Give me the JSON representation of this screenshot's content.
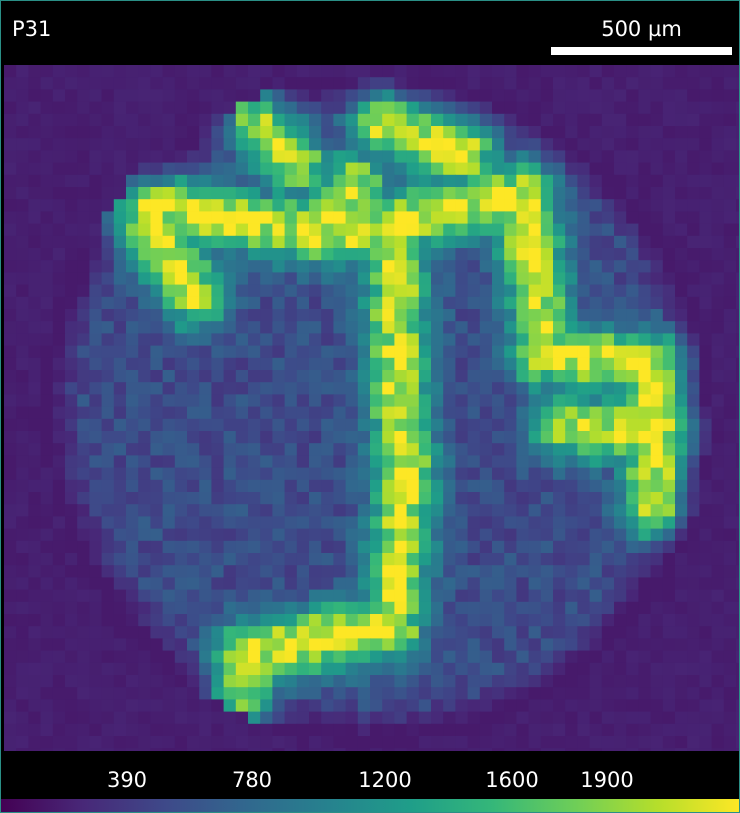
{
  "image": {
    "label": "P31",
    "scale_bar": "500 µm"
  },
  "colorbar": {
    "colormap": "viridis",
    "ticks": [
      "390",
      "780",
      "1200",
      "1600",
      "1900"
    ],
    "stops": [
      "#440154",
      "#482878",
      "#3e4989",
      "#31688e",
      "#26828e",
      "#1f9e89",
      "#35b779",
      "#6ece58",
      "#b5de2b",
      "#fde725"
    ]
  }
}
